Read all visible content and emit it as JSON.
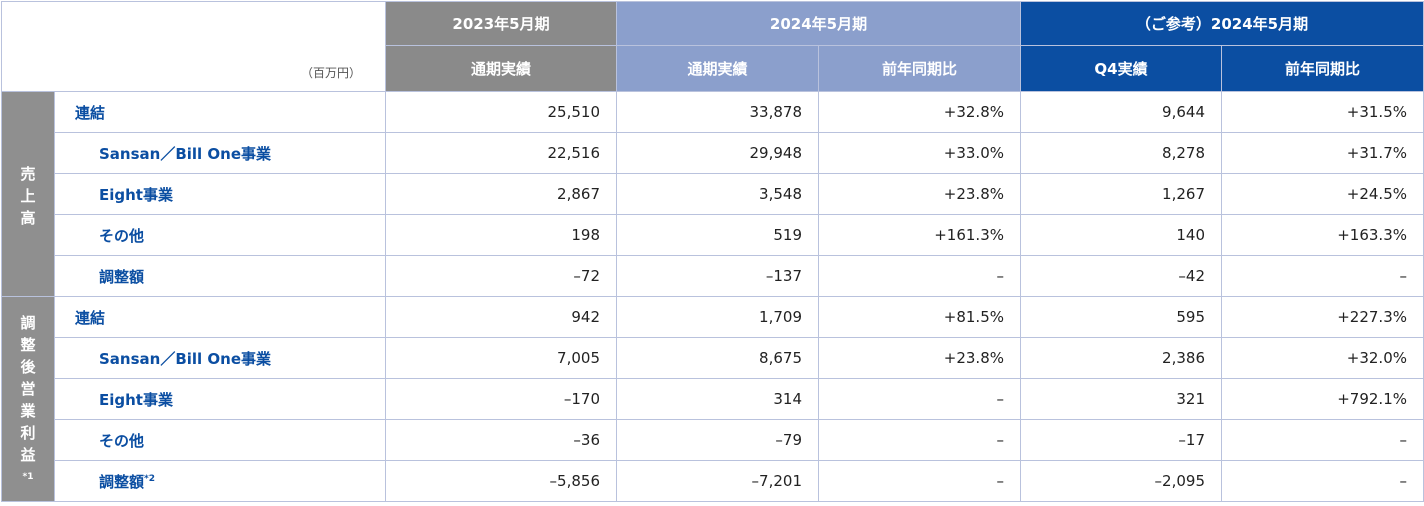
{
  "header": {
    "unit": "（百万円）",
    "groups": [
      "2023年5月期",
      "2024年5月期",
      "（ご参考）2024年5月期"
    ],
    "subcols": [
      "通期実績",
      "通期実績",
      "前年同期比",
      "Q4実績",
      "前年同期比"
    ]
  },
  "sections": [
    {
      "label": "売\n上\n高",
      "rows": [
        {
          "name": "連結",
          "v": [
            "25,510",
            "33,878",
            "+32.8%",
            "9,644",
            "+31.5%"
          ]
        },
        {
          "name": "Sansan／Bill One事業",
          "v": [
            "22,516",
            "29,948",
            "+33.0%",
            "8,278",
            "+31.7%"
          ]
        },
        {
          "name": "Eight事業",
          "v": [
            "2,867",
            "3,548",
            "+23.8%",
            "1,267",
            "+24.5%"
          ]
        },
        {
          "name": "その他",
          "v": [
            "198",
            "519",
            "+161.3%",
            "140",
            "+163.3%"
          ]
        },
        {
          "name": "調整額",
          "v": [
            "–72",
            "–137",
            "–",
            "–42",
            "–"
          ]
        }
      ]
    },
    {
      "label": "調\n整\n後\n営\n業\n利\n益",
      "label_note": "*1",
      "rows": [
        {
          "name": "連結",
          "v": [
            "942",
            "1,709",
            "+81.5%",
            "595",
            "+227.3%"
          ]
        },
        {
          "name": "Sansan／Bill One事業",
          "v": [
            "7,005",
            "8,675",
            "+23.8%",
            "2,386",
            "+32.0%"
          ]
        },
        {
          "name": "Eight事業",
          "v": [
            "–170",
            "314",
            "–",
            "321",
            "+792.1%"
          ]
        },
        {
          "name": "その他",
          "v": [
            "–36",
            "–79",
            "–",
            "–17",
            "–"
          ]
        },
        {
          "name": "調整額",
          "note": "*2",
          "v": [
            "–5,856",
            "–7,201",
            "–",
            "–2,095",
            "–"
          ]
        }
      ]
    }
  ]
}
